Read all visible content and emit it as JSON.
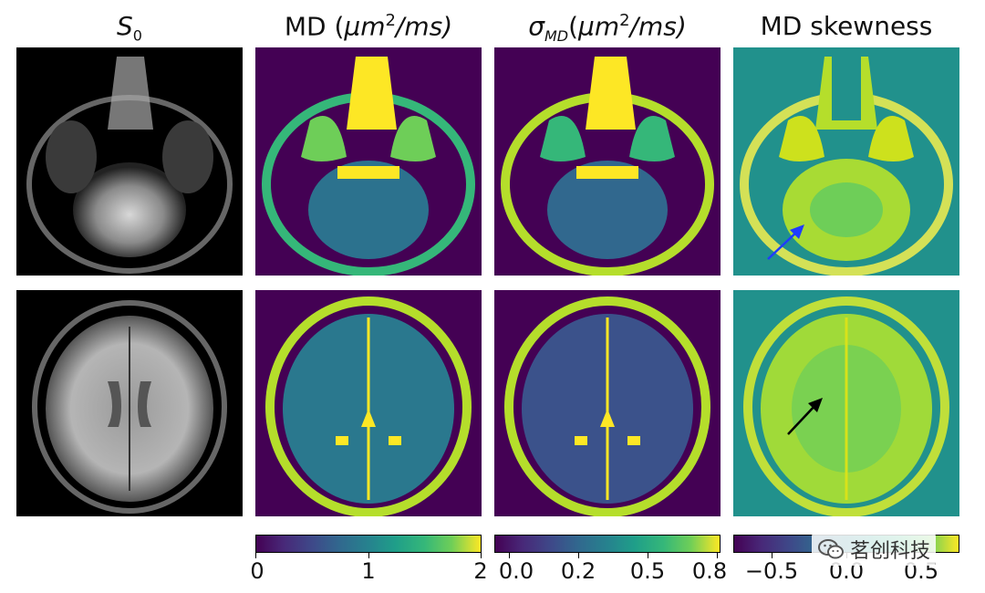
{
  "titles": {
    "s0": "S",
    "s0_sub": "0",
    "md": "MD (",
    "md_unit": "μm",
    "md_sup": "2",
    "md_rest": "/ms)",
    "sigma": "σ",
    "sigma_sub": "MD",
    "sigma_open": "(",
    "sigma_unit": "μm",
    "sigma_sup": "2",
    "sigma_rest": "/ms)",
    "skew": "MD skewness"
  },
  "colorbars": [
    {
      "name": "md",
      "ticks": [
        "0",
        "1",
        "2"
      ]
    },
    {
      "name": "sigma",
      "ticks": [
        "0.0",
        "0.2",
        "0.5",
        "0.8"
      ]
    },
    {
      "name": "skew",
      "ticks": [
        "−0.5",
        "0.0",
        "0.5"
      ]
    }
  ],
  "watermark": {
    "text": "茗创科技",
    "icon": "wechat-icon"
  },
  "colors": {
    "viridis_dark": "#440154",
    "viridis_teal": "#21918c",
    "viridis_yellow": "#fde725",
    "arrow_blue": "#1f3cff",
    "arrow_black": "#000000"
  }
}
